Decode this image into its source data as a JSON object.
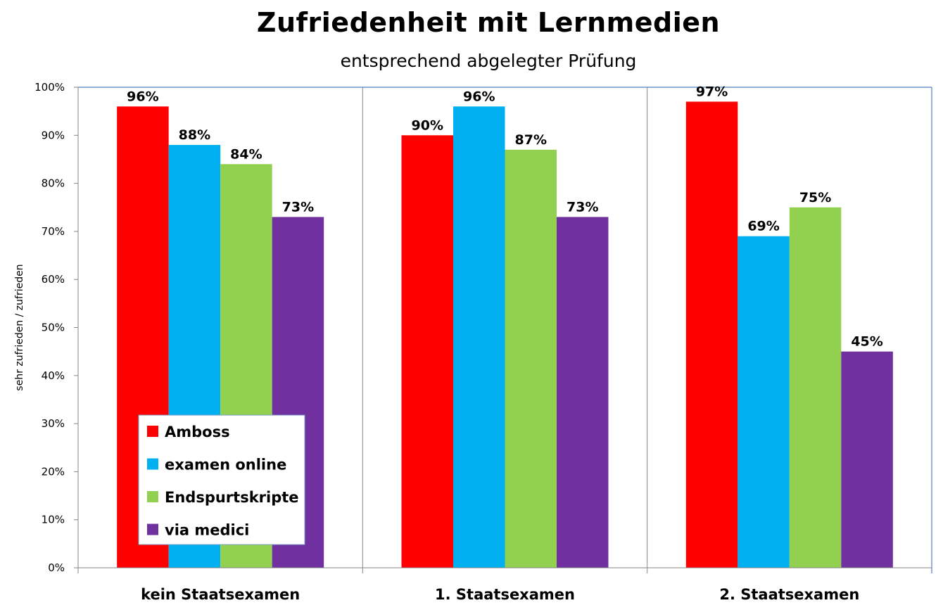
{
  "chart_data": {
    "type": "bar",
    "title": "Zufriedenheit mit Lernmedien",
    "subtitle": "entsprechend abgelegter Prüfung",
    "xlabel": "",
    "ylabel": "sehr zufrieden / zufrieden",
    "ylim": [
      0,
      100
    ],
    "yticks": [
      0,
      10,
      20,
      30,
      40,
      50,
      60,
      70,
      80,
      90,
      100
    ],
    "ytick_labels": [
      "0%",
      "10%",
      "20%",
      "30%",
      "40%",
      "50%",
      "60%",
      "70%",
      "80%",
      "90%",
      "100%"
    ],
    "categories": [
      "kein Staatsexamen",
      "1. Staatsexamen",
      "2. Staatsexamen"
    ],
    "series": [
      {
        "name": "Amboss",
        "color": "#ff0000",
        "values": [
          96,
          90,
          97
        ],
        "labels": [
          "96%",
          "90%",
          "97%"
        ]
      },
      {
        "name": "examen online",
        "color": "#00b0f0",
        "values": [
          88,
          96,
          69
        ],
        "labels": [
          "88%",
          "96%",
          "69%"
        ]
      },
      {
        "name": "Endspurtskripte",
        "color": "#92d050",
        "values": [
          84,
          87,
          75
        ],
        "labels": [
          "84%",
          "87%",
          "75%"
        ]
      },
      {
        "name": "via medici",
        "color": "#7030a0",
        "values": [
          73,
          73,
          45
        ],
        "labels": [
          "73%",
          "73%",
          "45%"
        ]
      }
    ],
    "grid": false,
    "category_separators": true,
    "legend_position": "bottom-left inside plot",
    "plot_border_color": "#4f81bd",
    "axis_color": "#868686"
  }
}
